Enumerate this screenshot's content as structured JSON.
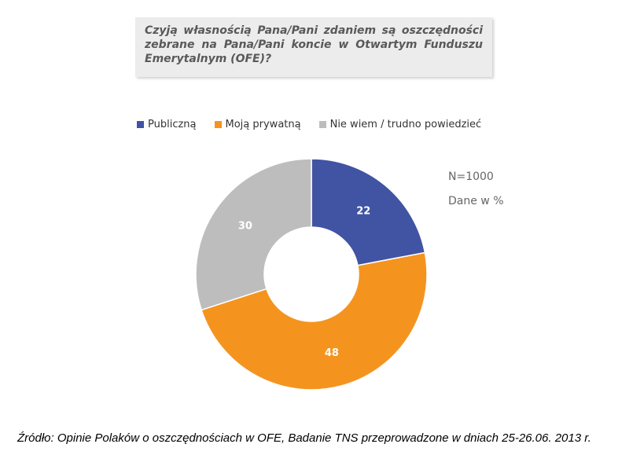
{
  "question": "Czyją własnością Pana/Pani zdaniem są oszczędności zebrane na Pana/Pani koncie w Otwartym Funduszu Emerytalnym (OFE)?",
  "chart_data": {
    "type": "pie",
    "donut": true,
    "categories": [
      "Publiczną",
      "Moją prywatną",
      "Nie wiem / trudno powiedzieć"
    ],
    "values": [
      22,
      48,
      30
    ],
    "labels": [
      "22",
      "48",
      "30"
    ],
    "colors": [
      "#4153a3",
      "#f4941f",
      "#bdbdbd"
    ],
    "legend_position": "top",
    "start_angle_deg": 0,
    "direction": "clockwise"
  },
  "notes": {
    "sample": "N=1000",
    "unit": "Dane w %"
  },
  "source": "Źródło: Opinie Polaków o oszczędnościach w OFE, Badanie TNS przeprowadzone w dniach 25-26.06. 2013 r."
}
